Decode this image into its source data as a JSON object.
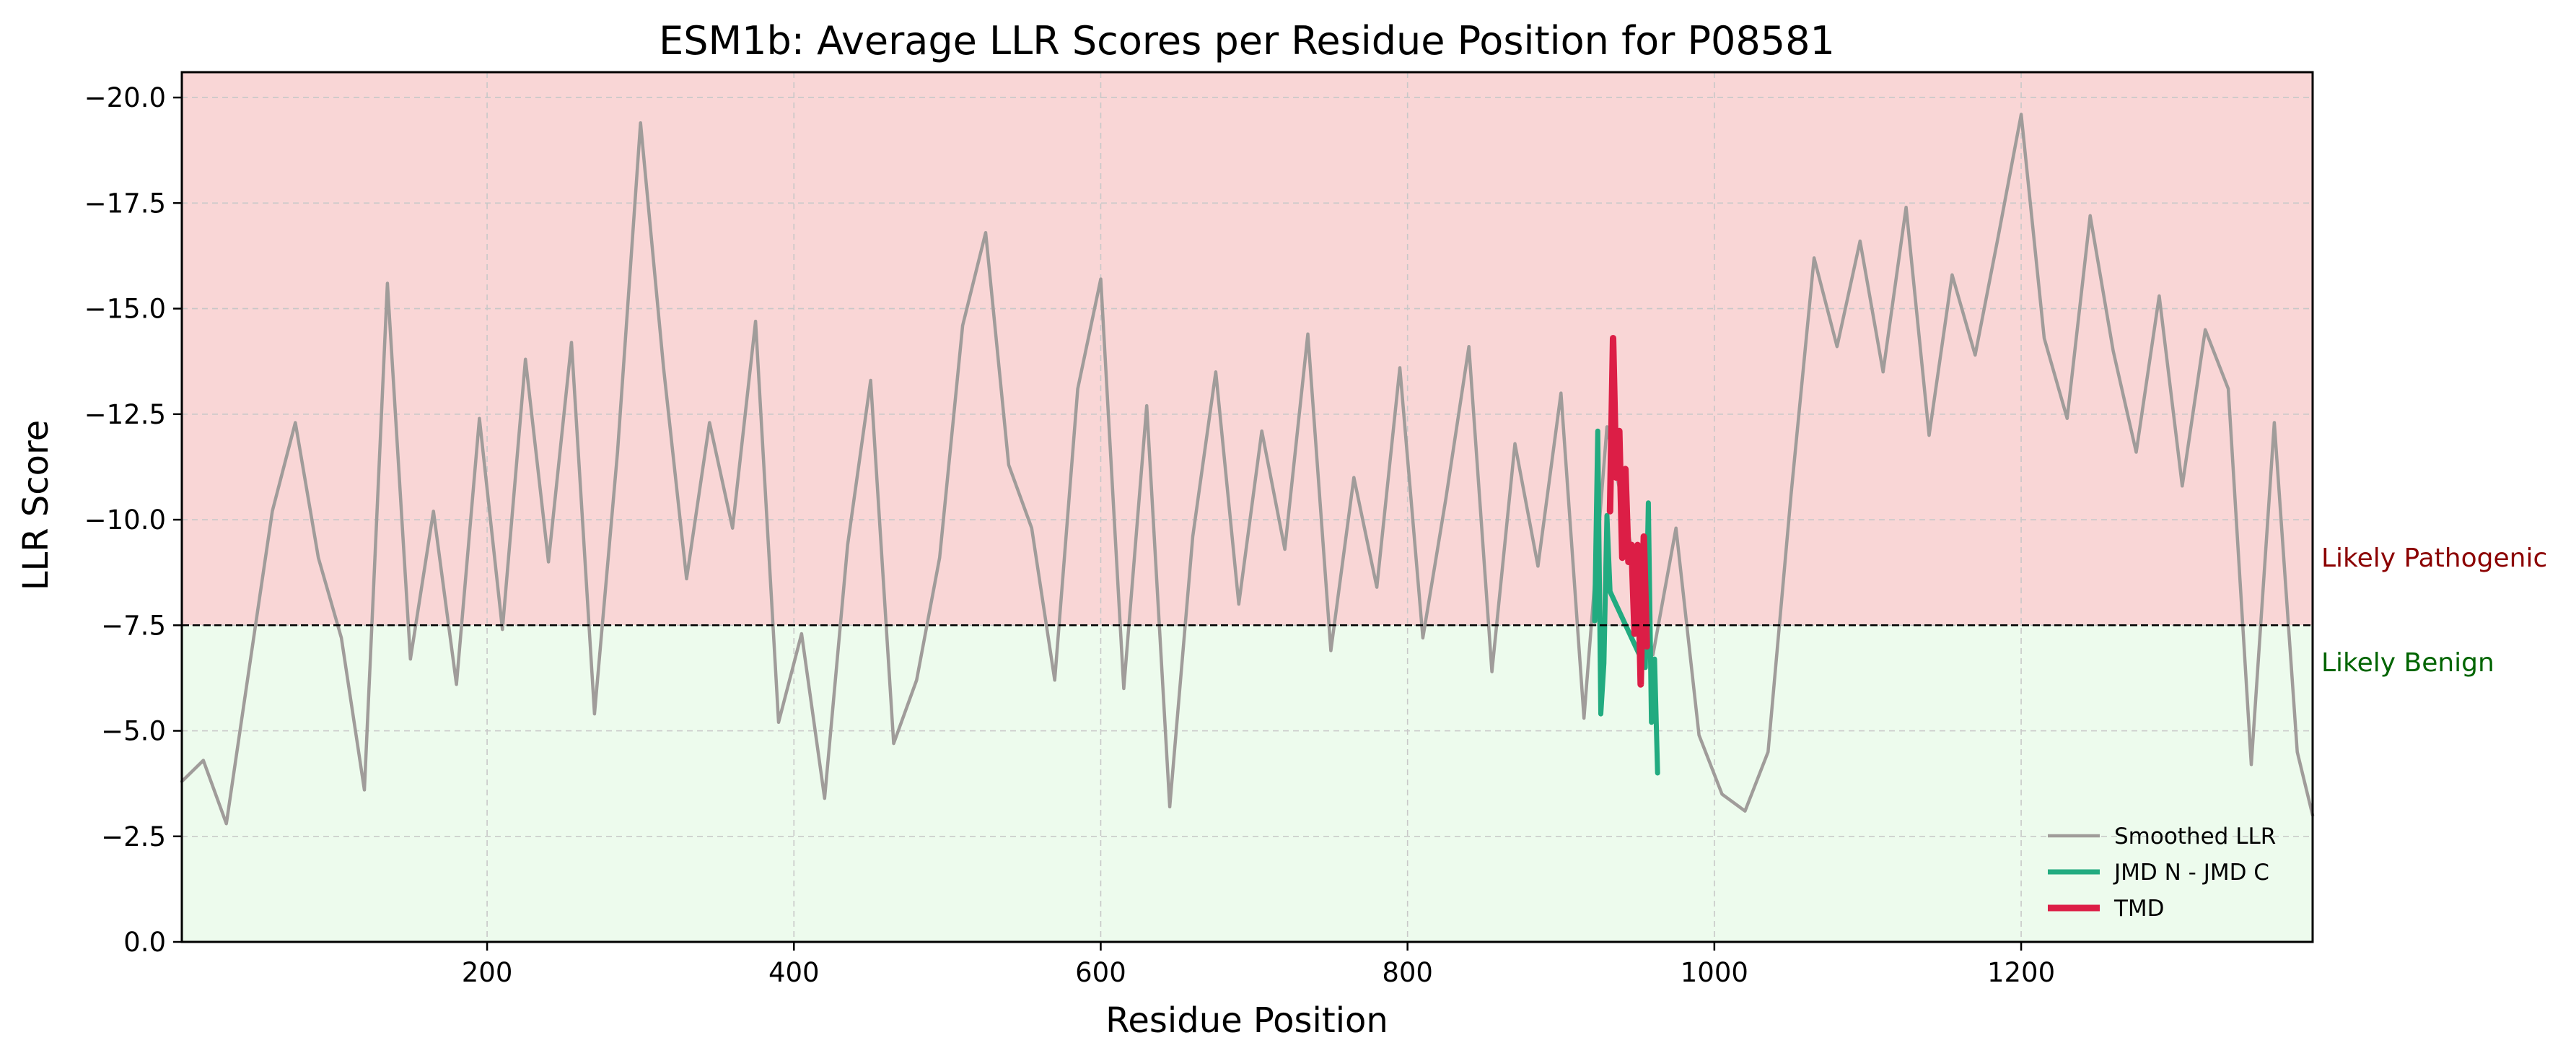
{
  "chart_data": {
    "type": "line",
    "title": "ESM1b: Average LLR Scores per Residue Position for P08581",
    "xlabel": "Residue Position",
    "ylabel": "LLR Score",
    "xlim": [
      1,
      1390
    ],
    "ylim": [
      0.0,
      -20.6
    ],
    "y_inverted": true,
    "x_ticks": [
      200,
      400,
      600,
      800,
      1000,
      1200
    ],
    "y_ticks": [
      0.0,
      -2.5,
      -5.0,
      -7.5,
      -10.0,
      -12.5,
      -15.0,
      -17.5,
      -20.0
    ],
    "x_tick_labels": [
      "200",
      "400",
      "600",
      "800",
      "1000",
      "1200"
    ],
    "y_tick_labels": [
      "0.0",
      "−2.5",
      "−5.0",
      "−7.5",
      "−10.0",
      "−12.5",
      "−15.0",
      "−17.5",
      "−20.0"
    ],
    "grid": true,
    "threshold": -7.5,
    "threshold_style": "dashed",
    "zones": [
      {
        "label": "Likely Pathogenic",
        "from": -20.6,
        "to": -7.5,
        "fill": "#f9d6d6",
        "text_color": "#8b0000"
      },
      {
        "label": "Likely Benign",
        "from": -7.5,
        "to": 0.0,
        "fill": "#edfbed",
        "text_color": "#006400"
      }
    ],
    "legend_position": "lower-right",
    "series": [
      {
        "name": "Smoothed LLR",
        "color": "#a09c9a",
        "x": [
          1,
          15,
          30,
          45,
          60,
          75,
          90,
          105,
          120,
          135,
          150,
          165,
          180,
          195,
          210,
          225,
          240,
          255,
          270,
          285,
          300,
          315,
          330,
          345,
          360,
          375,
          390,
          405,
          420,
          435,
          450,
          465,
          480,
          495,
          510,
          525,
          540,
          555,
          570,
          585,
          600,
          615,
          630,
          645,
          660,
          675,
          690,
          705,
          720,
          735,
          750,
          765,
          780,
          795,
          810,
          825,
          840,
          855,
          870,
          885,
          900,
          915,
          930,
          945,
          960,
          975,
          990,
          1005,
          1020,
          1035,
          1050,
          1065,
          1080,
          1095,
          1110,
          1125,
          1140,
          1155,
          1170,
          1185,
          1200,
          1215,
          1230,
          1245,
          1260,
          1275,
          1290,
          1305,
          1320,
          1335,
          1350,
          1365,
          1380,
          1390
        ],
        "values": [
          -3.8,
          -4.3,
          -2.8,
          -6.5,
          -10.2,
          -12.3,
          -9.1,
          -7.2,
          -3.6,
          -15.6,
          -6.7,
          -10.2,
          -6.1,
          -12.4,
          -7.4,
          -13.8,
          -9.0,
          -14.2,
          -5.4,
          -11.6,
          -19.4,
          -13.6,
          -8.6,
          -12.3,
          -9.8,
          -14.7,
          -5.2,
          -7.3,
          -3.4,
          -9.4,
          -13.3,
          -4.7,
          -6.2,
          -9.1,
          -14.6,
          -16.8,
          -11.3,
          -9.8,
          -6.2,
          -13.1,
          -15.7,
          -6.0,
          -12.7,
          -3.2,
          -9.6,
          -13.5,
          -8.0,
          -12.1,
          -9.3,
          -14.4,
          -6.9,
          -11.0,
          -8.4,
          -13.6,
          -7.2,
          -10.5,
          -14.1,
          -6.4,
          -11.8,
          -8.9,
          -13.0,
          -5.3,
          -12.2,
          -9.5,
          -6.8,
          -9.8,
          -4.9,
          -3.5,
          -3.1,
          -4.5,
          -10.6,
          -16.2,
          -14.1,
          -16.6,
          -13.5,
          -17.4,
          -12.0,
          -15.8,
          -13.9,
          -16.7,
          -19.6,
          -14.3,
          -12.4,
          -17.2,
          -14.0,
          -11.6,
          -15.3,
          -10.8,
          -14.5,
          -13.1,
          -4.2,
          -12.3,
          -4.5,
          -3.0
        ]
      },
      {
        "name": "JMD N - JMD C",
        "color": "#22ab80",
        "x": [
          922,
          924,
          926,
          928,
          930,
          932,
          955,
          957,
          959,
          961,
          963
        ],
        "values": [
          -7.6,
          -12.1,
          -5.4,
          -6.6,
          -10.1,
          -8.3,
          -6.5,
          -10.4,
          -5.2,
          -6.7,
          -4.0
        ]
      },
      {
        "name": "TMD",
        "color": "#dc1e46",
        "x": [
          932,
          934,
          936,
          938,
          940,
          942,
          944,
          946,
          948,
          950,
          952,
          954,
          956
        ],
        "values": [
          -10.2,
          -14.3,
          -11.0,
          -12.1,
          -9.1,
          -11.2,
          -9.0,
          -9.4,
          -7.3,
          -9.4,
          -6.1,
          -9.6,
          -7.0
        ]
      }
    ]
  }
}
